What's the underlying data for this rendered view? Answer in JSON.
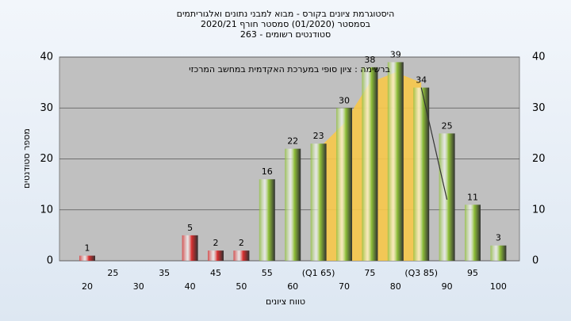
{
  "chart_data": {
    "type": "bar",
    "title_lines": [
      "היסטוגרמת ציונים בקורס - מבוא למבני נתונים ואלגוריתמים",
      "בסמסטר  (01/2020)  סמסטר חורף  2020/21",
      "סטודנטים רשומים - 263"
    ],
    "annotation": "ברשימה : ציון סופי במערכת האקדמית במחשב המרכזי",
    "xlabel": "טווח ציונים",
    "ylabel": "מספר סטודנטים",
    "categories": [
      "20",
      "25",
      "30",
      "35",
      "40",
      "45",
      "50",
      "55",
      "60",
      "(Q1 65)",
      "70",
      "75",
      "80",
      "(Q3 85)",
      "90",
      "95",
      "100"
    ],
    "values": [
      1,
      0,
      0,
      0,
      5,
      2,
      2,
      16,
      22,
      23,
      30,
      38,
      39,
      34,
      25,
      11,
      3
    ],
    "colors": [
      "#d93030",
      "#d93030",
      "#d93030",
      "#d93030",
      "#d93030",
      "#d93030",
      "#d93030",
      "#8fbf3a",
      "#8fbf3a",
      "#8fbf3a",
      "#8fbf3a",
      "#8fbf3a",
      "#8fbf3a",
      "#8fbf3a",
      "#8fbf3a",
      "#8fbf3a",
      "#8fbf3a"
    ],
    "area": {
      "color": "#f7c84a",
      "values": [
        null,
        null,
        null,
        null,
        null,
        null,
        null,
        null,
        null,
        22,
        27,
        35,
        37,
        35,
        null,
        null,
        null
      ]
    },
    "line": {
      "color": "#333333",
      "values": [
        null,
        null,
        null,
        null,
        null,
        null,
        null,
        null,
        null,
        null,
        null,
        null,
        null,
        34,
        12,
        null,
        null
      ]
    },
    "ylim": [
      0,
      40
    ],
    "yticks": [
      0,
      10,
      20,
      30,
      40
    ],
    "grid": true
  }
}
